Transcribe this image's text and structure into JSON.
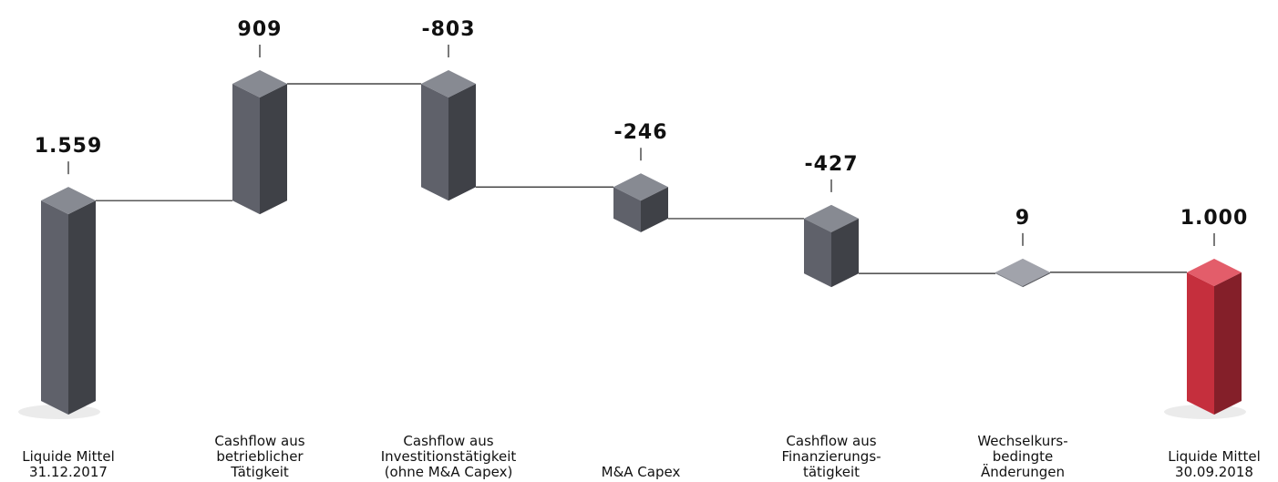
{
  "chart_data": {
    "type": "waterfall",
    "categories": [
      [
        "Liquide Mittel",
        "31.12.2017"
      ],
      [
        "Cashflow aus",
        "betrieblicher",
        "Tätigkeit"
      ],
      [
        "Cashflow aus",
        "Investitionstätigkeit",
        "(ohne M&A Capex)"
      ],
      [
        "M&A Capex"
      ],
      [
        "Cashflow aus",
        "Finanzierungs-",
        "tätigkeit"
      ],
      [
        "Wechselkurs-",
        "bedingte",
        "Änderungen"
      ],
      [
        "Liquide Mittel",
        "30.09.2018"
      ]
    ],
    "values": [
      1559,
      909,
      -803,
      -246,
      -427,
      9,
      1000
    ],
    "value_labels": [
      "1.559",
      "909",
      "-803",
      "-246",
      "-427",
      "9",
      "1.000"
    ],
    "measures": [
      "absolute",
      "relative",
      "relative",
      "relative",
      "relative",
      "relative",
      "absolute"
    ],
    "colors": [
      "#6a6d77",
      "#6a6d77",
      "#6a6d77",
      "#6a6d77",
      "#6a6d77",
      "#8a8d96",
      "#dc3545"
    ]
  }
}
